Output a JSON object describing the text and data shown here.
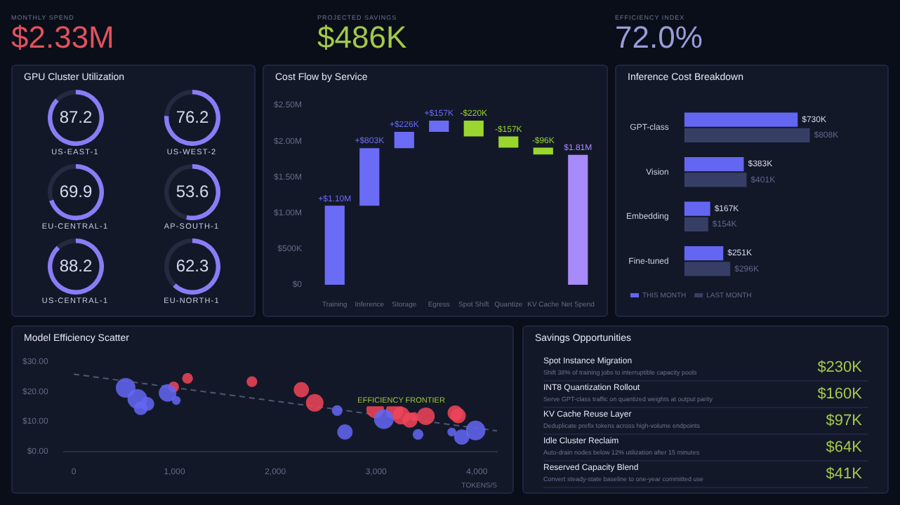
{
  "chart_data": [
    {
      "type": "other",
      "annotations": [
        "MONTHLY SPEND",
        "$2.33M",
        "PROJECTED SAVINGS",
        "$486K",
        "EFFICIENCY INDEX",
        "72.0%"
      ],
      "colors": [
        "#e0525e",
        "#a3c94a",
        "#9a9cd8"
      ]
    },
    {
      "type": "other",
      "title": "GPU Cluster Utilization"
    },
    {
      "type": "donut",
      "title": "US-EAST-1",
      "values": [
        87.2,
        12.8
      ],
      "colors": [
        "#8b7cf6",
        "#242a40"
      ],
      "value_labels": [
        "87.2",
        null
      ]
    },
    {
      "type": "donut",
      "title": "US-WEST-2",
      "values": [
        76.2,
        23.8
      ],
      "colors": [
        "#8b7cf6",
        "#242a40"
      ],
      "value_labels": [
        "76.2",
        null
      ]
    },
    {
      "type": "donut",
      "title": "EU-CENTRAL-1",
      "values": [
        69.9,
        30.1
      ],
      "colors": [
        "#8b7cf6",
        "#242a40"
      ],
      "value_labels": [
        "69.9",
        null
      ]
    },
    {
      "type": "donut",
      "title": "AP-SOUTH-1",
      "values": [
        53.6,
        46.4
      ],
      "colors": [
        "#8b7cf6",
        "#242a40"
      ],
      "value_labels": [
        "53.6",
        null
      ]
    },
    {
      "type": "donut",
      "title": "US-CENTRAL-1",
      "values": [
        88.2,
        11.8
      ],
      "colors": [
        "#8b7cf6",
        "#242a40"
      ],
      "value_labels": [
        "88.2",
        null
      ]
    },
    {
      "type": "donut",
      "title": "EU-NORTH-1",
      "values": [
        62.3,
        37.7
      ],
      "colors": [
        "#8b7cf6",
        "#242a40"
      ],
      "value_labels": [
        "62.3",
        null
      ]
    },
    {
      "type": "bar",
      "title": "Cost Flow by Service",
      "categories": [
        "Training",
        "Inference",
        "Storage",
        "Egress",
        "Spot Shift",
        "Quantize",
        "KV Cache",
        "Net Spend"
      ],
      "values": [
        1100000,
        803000,
        226000,
        157000,
        -220000,
        -157000,
        -96000,
        1810000
      ],
      "base": [
        0,
        1100000,
        1903000,
        2129000,
        2286000,
        2066000,
        1909000,
        0
      ],
      "colors": [
        "#6b6cf5",
        "#6b6cf5",
        "#6b6cf5",
        "#6b6cf5",
        "#9ad62e",
        "#9ad62e",
        "#9ad62e",
        "#a78bfa"
      ],
      "value_labels": [
        "+$1.10M",
        "+$803K",
        "+$226K",
        "+$157K",
        "-$220K",
        "-$157K",
        "-$96K",
        "$1.81M"
      ],
      "ylim": [
        0,
        2500000
      ],
      "yticks": [
        {
          "value": 0,
          "label": "$0"
        },
        {
          "value": 500000,
          "label": "$500K"
        },
        {
          "value": 1000000,
          "label": "$1.00M"
        },
        {
          "value": 1500000,
          "label": "$1.50M"
        },
        {
          "value": 2000000,
          "label": "$2.00M"
        },
        {
          "value": 2500000,
          "label": "$2.50M"
        }
      ]
    },
    {
      "type": "bar",
      "title": "Inference Cost Breakdown",
      "orientation": "horizontal",
      "categories": [
        "GPT-class",
        "Vision",
        "Embedding",
        "Fine-tuned"
      ],
      "legend": "bottom left",
      "series": [
        {
          "name": "THIS MONTH",
          "color": "#6366f1",
          "values": [
            730,
            383,
            167,
            251
          ],
          "value_labels": [
            "$730K",
            "$383K",
            "$167K",
            "$251K"
          ]
        },
        {
          "name": "LAST MONTH",
          "color": "#373e66",
          "values": [
            808,
            401,
            154,
            296
          ],
          "value_labels": [
            "$808K",
            "$401K",
            "$154K",
            "$296K"
          ]
        }
      ]
    },
    {
      "type": "bubble",
      "title": "Model Efficiency Scatter",
      "xlabel": "TOKENS/S",
      "xlim": [
        -100,
        4200
      ],
      "ylim": [
        0,
        30
      ],
      "xticks": [
        0,
        {
          "value": 1000,
          "label": "1,000"
        },
        {
          "value": 2000,
          "label": "2,000"
        },
        {
          "value": 3000,
          "label": "3,000"
        },
        {
          "value": 4000,
          "label": "4,000"
        }
      ],
      "yticks": [
        {
          "value": 0,
          "label": "$0.00"
        },
        {
          "value": 10,
          "label": "$10.00"
        },
        {
          "value": 20,
          "label": "$20.00"
        },
        {
          "value": 30,
          "label": "$30.00"
        }
      ],
      "annotations": [
        {
          "text": "EFFICIENCY FRONTIER",
          "x": 3250,
          "y": 17
        }
      ],
      "series": [
        {
          "color": "#6366f1",
          "x": [
            515,
            631,
            730,
            665,
            931,
            1017,
            2614,
            2691,
            3077,
            3416,
            3751,
            3850,
            3987
          ],
          "values": [
            21.3,
            17.6,
            15.9,
            14.5,
            19.6,
            17.1,
            13.7,
            6.5,
            10.8,
            5.7,
            6.5,
            4.8,
            7.0
          ],
          "sizes": [
            1,
            1,
            0.5,
            0.5,
            0.8,
            0.2,
            0.3,
            0.6,
            1,
            0.3,
            0.2,
            0.6,
            1
          ]
        },
        {
          "color": "#ef4458",
          "x": [
            991,
            1129,
            1768,
            2258,
            2391,
            2991,
            3185,
            3249,
            3335,
            3378,
            3494,
            3785,
            3815
          ],
          "values": [
            21.6,
            24.5,
            23.4,
            20.7,
            16.3,
            14.1,
            13.7,
            12.0,
            10.5,
            11.7,
            11.8,
            12.9,
            12.0
          ],
          "sizes": [
            0.3,
            0.3,
            0.3,
            0.6,
            0.8,
            0.8,
            0.8,
            0.8,
            0.6,
            0.2,
            0.8,
            0.6,
            0.6
          ]
        },
        {
          "type": "line",
          "color": "#4f5775",
          "line_style": "dashed",
          "marker": "none",
          "x": [
            0,
            4200
          ],
          "values": [
            25.9,
            6.9
          ]
        }
      ]
    },
    {
      "type": "other",
      "title": "Savings Opportunities",
      "color": "#a3c94a",
      "annotations": [
        "Spot Instance Migration",
        "Shift 38% of training jobs to interruptible capacity pools",
        "$230K",
        "INT8 Quantization Rollout",
        "Serve GPT-class traffic on quantized weights at output parity",
        "$160K",
        "KV Cache Reuse Layer",
        "Deduplicate prefix tokens across high-volume endpoints",
        "$97K",
        "Idle Cluster Reclaim",
        "Auto-drain nodes below 12% utilization after 15 minutes",
        "$64K",
        "Reserved Capacity Blend",
        "Convert steady-state baseline to one-year committed use",
        "$41K"
      ]
    }
  ]
}
